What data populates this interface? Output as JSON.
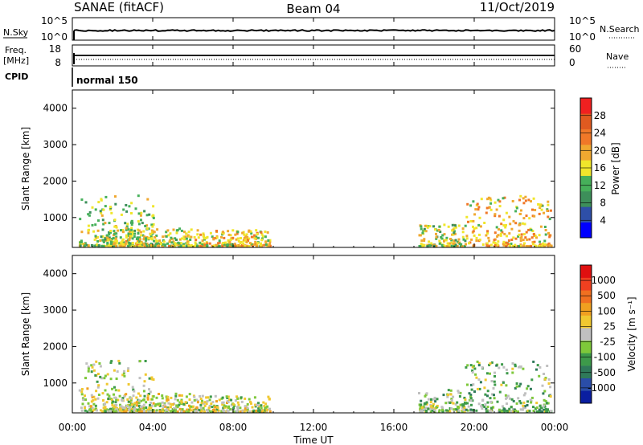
{
  "header": {
    "station": "SANAE (fitACF)",
    "beam": "Beam 04",
    "date": "11/Oct/2019"
  },
  "panels": {
    "nsky_label": "N.Sky",
    "nsky_ticks": [
      "10^5",
      "10^0"
    ],
    "nsearch_label": "N.Search",
    "nsearch_ticks": [
      "10^5",
      "10^0"
    ],
    "freq_label_1": "Freq.",
    "freq_label_2": "[MHz]",
    "freq_ticks": [
      "18",
      "8"
    ],
    "nave_label": "Nave",
    "nave_ticks": [
      "60",
      "0"
    ],
    "cpid_label": "CPID",
    "cpid_value": "normal 150"
  },
  "time_axis": {
    "ticks": [
      "00:00",
      "04:00",
      "08:00",
      "12:00",
      "16:00",
      "20:00",
      "00:00"
    ],
    "label": "Time UT"
  },
  "colorbars": {
    "power": {
      "label": "Power [dB]",
      "tick_labels": [
        "28",
        "24",
        "20",
        "16",
        "12",
        "8",
        "4"
      ],
      "colors": [
        "#0000ff",
        "#2e4fa8",
        "#3d8f5a",
        "#46b05a",
        "#f0e62b",
        "#f0a830",
        "#f07828",
        "#e05a20",
        "#f02020"
      ]
    },
    "velocity": {
      "label": "Velocity [m s⁻¹]",
      "tick_labels": [
        "1000",
        "500",
        "100",
        "25",
        "-25",
        "-100",
        "-500",
        "-1000"
      ],
      "colors": [
        "#0a1ea0",
        "#2a4da8",
        "#2f7a5a",
        "#3d9a4a",
        "#7ec83a",
        "#c0c0c0",
        "#f0c830",
        "#f0a020",
        "#f07020",
        "#f04020",
        "#e01010"
      ]
    }
  },
  "chart_data": [
    {
      "type": "heatmap",
      "title": "Power",
      "ylabel": "Slant Range [km]",
      "xlabel": "",
      "x_unit": "hours UT",
      "xlim": [
        0,
        24
      ],
      "ylim": [
        180,
        4500
      ],
      "yticks": [
        1000,
        2000,
        3000,
        4000
      ],
      "colorbar_range": [
        0,
        32
      ],
      "scatter_regions": [
        {
          "t0": 0.3,
          "t1": 4.0,
          "r0": 200,
          "r1": 1600,
          "value": 14
        },
        {
          "t0": 1.5,
          "t1": 6.0,
          "r0": 200,
          "r1": 700,
          "value": 16
        },
        {
          "t0": 6.0,
          "t1": 9.8,
          "r0": 200,
          "r1": 650,
          "value": 18
        },
        {
          "t0": 17.2,
          "t1": 19.5,
          "r0": 200,
          "r1": 800,
          "value": 15
        },
        {
          "t0": 19.5,
          "t1": 23.8,
          "r0": 200,
          "r1": 1600,
          "value": 19
        }
      ]
    },
    {
      "type": "heatmap",
      "title": "Velocity",
      "ylabel": "Slant Range [km]",
      "xlabel": "Time UT",
      "x_unit": "hours UT",
      "xlim": [
        0,
        24
      ],
      "ylim": [
        180,
        4500
      ],
      "yticks": [
        1000,
        2000,
        3000,
        4000
      ],
      "colorbar_range": [
        -1000,
        1000
      ],
      "scatter_regions": [
        {
          "t0": 0.3,
          "t1": 4.0,
          "r0": 200,
          "r1": 1600,
          "value": -60
        },
        {
          "t0": 1.5,
          "t1": 6.0,
          "r0": 200,
          "r1": 700,
          "value": 20
        },
        {
          "t0": 6.0,
          "t1": 9.8,
          "r0": 200,
          "r1": 650,
          "value": -30
        },
        {
          "t0": 17.2,
          "t1": 19.5,
          "r0": 200,
          "r1": 800,
          "value": -120
        },
        {
          "t0": 19.5,
          "t1": 23.8,
          "r0": 200,
          "r1": 1600,
          "value": -200
        }
      ]
    }
  ]
}
